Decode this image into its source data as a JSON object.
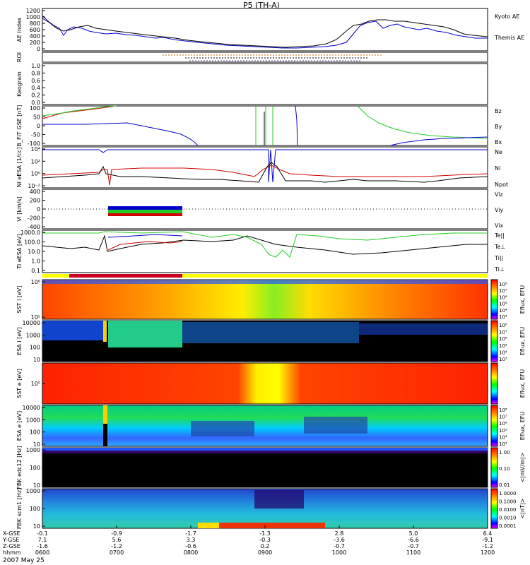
{
  "title": "P5 (TH-A)",
  "date_label": "2007 May 25",
  "colors": {
    "red": "#d40000",
    "green": "#22cc22",
    "blue": "#0000cc",
    "black": "#000000",
    "yellow": "#ffff00"
  },
  "chart_data": {
    "type": "line",
    "x": [
      "0600",
      "0700",
      "0800",
      "0900",
      "1000",
      "1100",
      "1200"
    ],
    "panels": [
      {
        "id": "ae",
        "ylabel": "AE Index",
        "ticks": [
          "1200",
          "1000",
          "800",
          "600",
          "400",
          "200",
          "0"
        ],
        "ylim": [
          0,
          1200
        ],
        "series": [
          {
            "name": "Kyoto AE",
            "color": "#0000cc"
          },
          {
            "name": "Themis AE",
            "color": "#000000"
          }
        ]
      },
      {
        "id": "roi",
        "ylabel": "ROI"
      },
      {
        "id": "keogram",
        "ylabel": "Keogram",
        "ticks": [
          "1.0",
          "0.8",
          "0.6",
          "0.4",
          "0.2",
          "0.0"
        ],
        "ylim": [
          0,
          1
        ]
      },
      {
        "id": "bfit",
        "ylabel": "B_FIT GSE [nT]",
        "ticks": [
          "100",
          "50",
          "0",
          "-50",
          "-100"
        ],
        "series": [
          {
            "name": "Bz",
            "color": "#d40000"
          },
          {
            "name": "By",
            "color": "#22cc22"
          },
          {
            "name": "Bx",
            "color": "#0000cc"
          }
        ]
      },
      {
        "id": "ni",
        "ylabel": "Ni eESA [1/cc]",
        "ticks": [
          "10⁴",
          "10²",
          "10⁰",
          "10⁻²"
        ],
        "series": [
          {
            "name": "Ne",
            "color": "#d40000"
          },
          {
            "name": "Ni",
            "color": "#000000"
          },
          {
            "name": "Npot",
            "color": "#0000cc"
          }
        ]
      },
      {
        "id": "vi",
        "ylabel": "Vi [km/s]",
        "ticks": [
          "400",
          "200",
          "0",
          "-200",
          "-400"
        ],
        "series": [
          {
            "name": "Viz",
            "color": "#d40000"
          },
          {
            "name": "Viy",
            "color": "#22cc22"
          },
          {
            "name": "Vix",
            "color": "#0000cc"
          }
        ]
      },
      {
        "id": "ti",
        "ylabel": "Ti eESA [eV]",
        "ticks": [
          "1000.0",
          "100.0",
          "10.0",
          "1.0",
          "0.1"
        ],
        "series": [
          {
            "name": "Te||",
            "color": "#000000"
          },
          {
            "name": "Te⊥",
            "color": "#d40000"
          },
          {
            "name": "Ti||",
            "color": "#22cc22"
          },
          {
            "name": "Ti⊥",
            "color": "#0000cc"
          }
        ]
      },
      {
        "id": "sst_i",
        "ylabel": "SST i [eV]",
        "ticks": [
          "10⁶",
          "10⁵"
        ],
        "cbar_label": "Eflux, EFU",
        "cbar_ticks": [
          "10⁸",
          "10⁷",
          "10⁶",
          "10⁵",
          "10⁴",
          "10³"
        ]
      },
      {
        "id": "esa_i",
        "ylabel": "ESA i [eV]",
        "ticks": [
          "10000",
          "1000",
          "100",
          "10"
        ],
        "cbar_label": "Eflux, EFU",
        "cbar_ticks": [
          "10⁸",
          "10⁷",
          "10⁶",
          "10⁵",
          "10⁴",
          "10³"
        ]
      },
      {
        "id": "sst_e",
        "ylabel": "SST e [eV]",
        "ticks": [
          "10⁵"
        ],
        "cbar_label": "Eflux, EFU",
        "cbar_ticks": []
      },
      {
        "id": "esa_e",
        "ylabel": "ESA e [eV]",
        "ticks": [
          "10000",
          "1000",
          "100",
          "10"
        ],
        "cbar_label": "Eflux, EFU",
        "cbar_ticks": [
          "10⁸",
          "10⁷",
          "10⁶",
          "10⁵",
          "10⁴",
          "10³"
        ]
      },
      {
        "id": "fbk1",
        "ylabel": "FBK edc12 [Hz]",
        "ticks": [
          "1000",
          "100",
          "10"
        ],
        "cbar_label": "<|mV/m|>",
        "cbar_ticks": [
          "1.00",
          "0.10",
          "0.01"
        ]
      },
      {
        "id": "fbk2",
        "ylabel": "FBK scm1 [Hz]",
        "ticks": [
          "1000",
          "100",
          "10"
        ],
        "cbar_label": "<|nT|>",
        "cbar_ticks": [
          "1.0000",
          "0.1000",
          "0.0100",
          "0.0010",
          "0.0001"
        ]
      }
    ],
    "coords": {
      "row_labels": [
        "X-GSE",
        "Y-GSE",
        "Z-GSE",
        "hhmm"
      ],
      "columns": [
        [
          "-0.1",
          "7.1",
          "-1.6",
          "0600"
        ],
        [
          "-0.9",
          "5.6",
          "-1.2",
          "0700"
        ],
        [
          "-1.7",
          "3.3",
          "-0.6",
          "0800"
        ],
        [
          "-1.3",
          "-0.3",
          "0.2",
          "0900"
        ],
        [
          "2.8",
          "-3.6",
          "-0.7",
          "1000"
        ],
        [
          "5.0",
          "-6.6",
          "-0.7",
          "1100"
        ],
        [
          "6.4",
          "-9.1",
          "-1.2",
          "1200"
        ]
      ]
    }
  }
}
